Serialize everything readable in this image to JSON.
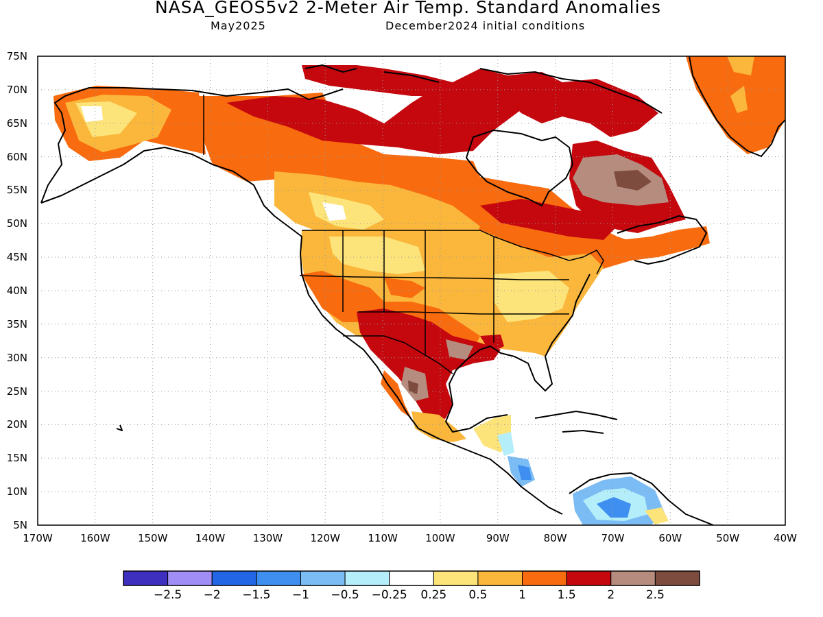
{
  "header": {
    "title": "NASA_GEOS5v2 2-Meter Air Temp. Standard Anomalies",
    "valid_month": "May2025",
    "init_conditions": "December2024 initial conditions"
  },
  "map": {
    "region": "North America",
    "lat_range": [
      5,
      75
    ],
    "lon_range": [
      -170,
      -40
    ],
    "lat_ticks": [
      "5N",
      "10N",
      "15N",
      "20N",
      "25N",
      "30N",
      "35N",
      "40N",
      "45N",
      "50N",
      "55N",
      "60N",
      "65N",
      "70N",
      "75N"
    ],
    "lon_ticks": [
      "170W",
      "160W",
      "150W",
      "140W",
      "130W",
      "120W",
      "110W",
      "100W",
      "90W",
      "80W",
      "70W",
      "60W",
      "50W",
      "40W"
    ],
    "gridlines": true
  },
  "legend": {
    "labels": [
      "-2.5",
      "-2",
      "-1.5",
      "-1",
      "-0.5",
      "-0.25",
      "0.25",
      "0.5",
      "1",
      "1.5",
      "2",
      "2.5"
    ],
    "colors": [
      "#3f2fbf",
      "#a08df5",
      "#2266e6",
      "#3e8ff0",
      "#7bbcf4",
      "#b4eefa",
      "#ffffff",
      "#fde47a",
      "#fbb73b",
      "#f86b0f",
      "#c4080e",
      "#b58c7e",
      "#7d4c3f"
    ]
  }
}
